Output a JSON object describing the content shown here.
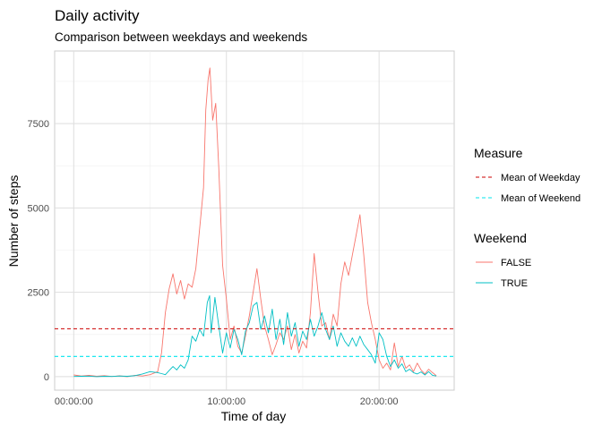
{
  "chart_data": {
    "type": "line",
    "title": "Daily activity",
    "subtitle": "Comparison between weekdays and weekends",
    "xlabel": "Time of day",
    "ylabel": "Number of steps",
    "x_unit": "hours",
    "xlim": [
      -1.25,
      24.92
    ],
    "ylim": [
      -400,
      9650
    ],
    "x_ticks": [
      {
        "value": 0,
        "label": "00:00:00"
      },
      {
        "value": 10,
        "label": "10:00:00"
      },
      {
        "value": 20,
        "label": "20:00:00"
      }
    ],
    "y_ticks": [
      {
        "value": 0,
        "label": "0"
      },
      {
        "value": 2500,
        "label": "2500"
      },
      {
        "value": 5000,
        "label": "5000"
      },
      {
        "value": 7500,
        "label": "7500"
      }
    ],
    "grid": true,
    "legend_placement": "right",
    "series": [
      {
        "name": "FALSE",
        "color": "#f8766d",
        "points": [
          [
            0,
            50
          ],
          [
            0.5,
            20
          ],
          [
            1,
            40
          ],
          [
            1.5,
            10
          ],
          [
            2,
            30
          ],
          [
            2.5,
            5
          ],
          [
            3,
            25
          ],
          [
            3.5,
            0
          ],
          [
            4,
            40
          ],
          [
            4.5,
            20
          ],
          [
            5,
            60
          ],
          [
            5.5,
            150
          ],
          [
            5.75,
            700
          ],
          [
            6,
            1900
          ],
          [
            6.25,
            2600
          ],
          [
            6.5,
            3050
          ],
          [
            6.75,
            2450
          ],
          [
            7,
            2850
          ],
          [
            7.25,
            2300
          ],
          [
            7.5,
            2750
          ],
          [
            7.75,
            2650
          ],
          [
            8,
            3200
          ],
          [
            8.25,
            4400
          ],
          [
            8.5,
            5600
          ],
          [
            8.65,
            7900
          ],
          [
            8.8,
            8800
          ],
          [
            8.92,
            9150
          ],
          [
            9.1,
            7600
          ],
          [
            9.3,
            8100
          ],
          [
            9.5,
            6200
          ],
          [
            9.75,
            3300
          ],
          [
            10,
            2300
          ],
          [
            10.25,
            1100
          ],
          [
            10.5,
            1500
          ],
          [
            10.75,
            900
          ],
          [
            11,
            700
          ],
          [
            11.25,
            1200
          ],
          [
            11.5,
            1800
          ],
          [
            11.75,
            2500
          ],
          [
            12,
            3200
          ],
          [
            12.25,
            2300
          ],
          [
            12.5,
            1500
          ],
          [
            12.75,
            1100
          ],
          [
            13,
            650
          ],
          [
            13.25,
            950
          ],
          [
            13.5,
            1300
          ],
          [
            13.75,
            1100
          ],
          [
            14,
            1500
          ],
          [
            14.25,
            800
          ],
          [
            14.5,
            1250
          ],
          [
            14.75,
            700
          ],
          [
            15,
            1050
          ],
          [
            15.25,
            850
          ],
          [
            15.5,
            1900
          ],
          [
            15.75,
            3650
          ],
          [
            16,
            2500
          ],
          [
            16.25,
            1500
          ],
          [
            16.5,
            1600
          ],
          [
            16.75,
            1100
          ],
          [
            17,
            1850
          ],
          [
            17.25,
            1500
          ],
          [
            17.5,
            2750
          ],
          [
            17.75,
            3400
          ],
          [
            18,
            3000
          ],
          [
            18.25,
            3600
          ],
          [
            18.5,
            4200
          ],
          [
            18.75,
            4800
          ],
          [
            19,
            3600
          ],
          [
            19.25,
            2200
          ],
          [
            19.5,
            1600
          ],
          [
            19.75,
            1100
          ],
          [
            20,
            500
          ],
          [
            20.25,
            250
          ],
          [
            20.5,
            400
          ],
          [
            20.75,
            200
          ],
          [
            21,
            1000
          ],
          [
            21.25,
            300
          ],
          [
            21.5,
            600
          ],
          [
            21.75,
            250
          ],
          [
            22,
            350
          ],
          [
            22.25,
            150
          ],
          [
            22.5,
            400
          ],
          [
            22.75,
            200
          ],
          [
            23,
            80
          ],
          [
            23.25,
            220
          ],
          [
            23.5,
            120
          ],
          [
            23.75,
            30
          ]
        ]
      },
      {
        "name": "TRUE",
        "color": "#00bfc4",
        "points": [
          [
            0,
            5
          ],
          [
            0.5,
            10
          ],
          [
            1,
            15
          ],
          [
            1.5,
            0
          ],
          [
            2,
            10
          ],
          [
            2.5,
            5
          ],
          [
            3,
            20
          ],
          [
            3.5,
            10
          ],
          [
            4,
            30
          ],
          [
            4.5,
            80
          ],
          [
            5,
            150
          ],
          [
            5.5,
            120
          ],
          [
            5.75,
            90
          ],
          [
            6,
            60
          ],
          [
            6.25,
            180
          ],
          [
            6.5,
            300
          ],
          [
            6.75,
            200
          ],
          [
            7,
            350
          ],
          [
            7.25,
            250
          ],
          [
            7.5,
            500
          ],
          [
            7.75,
            1200
          ],
          [
            8,
            1050
          ],
          [
            8.25,
            1400
          ],
          [
            8.5,
            1200
          ],
          [
            8.75,
            2200
          ],
          [
            8.9,
            2400
          ],
          [
            9,
            1300
          ],
          [
            9.25,
            2350
          ],
          [
            9.5,
            1500
          ],
          [
            9.75,
            700
          ],
          [
            10,
            1300
          ],
          [
            10.25,
            850
          ],
          [
            10.5,
            1400
          ],
          [
            10.75,
            1100
          ],
          [
            11,
            650
          ],
          [
            11.25,
            1350
          ],
          [
            11.5,
            1600
          ],
          [
            11.75,
            2100
          ],
          [
            12,
            2200
          ],
          [
            12.25,
            1400
          ],
          [
            12.5,
            1800
          ],
          [
            12.75,
            1300
          ],
          [
            13,
            2000
          ],
          [
            13.25,
            1100
          ],
          [
            13.5,
            1700
          ],
          [
            13.75,
            950
          ],
          [
            14,
            1900
          ],
          [
            14.25,
            1200
          ],
          [
            14.5,
            1600
          ],
          [
            14.75,
            900
          ],
          [
            15,
            1350
          ],
          [
            15.25,
            1100
          ],
          [
            15.5,
            1700
          ],
          [
            15.75,
            1200
          ],
          [
            16,
            1500
          ],
          [
            16.25,
            1900
          ],
          [
            16.5,
            1400
          ],
          [
            16.75,
            1100
          ],
          [
            17,
            1500
          ],
          [
            17.25,
            900
          ],
          [
            17.5,
            1300
          ],
          [
            17.75,
            1050
          ],
          [
            18,
            900
          ],
          [
            18.25,
            1150
          ],
          [
            18.5,
            900
          ],
          [
            18.75,
            1200
          ],
          [
            19,
            950
          ],
          [
            19.25,
            800
          ],
          [
            19.5,
            650
          ],
          [
            19.75,
            400
          ],
          [
            20,
            1300
          ],
          [
            20.25,
            1100
          ],
          [
            20.5,
            600
          ],
          [
            20.75,
            300
          ],
          [
            21,
            500
          ],
          [
            21.25,
            250
          ],
          [
            21.5,
            380
          ],
          [
            21.75,
            150
          ],
          [
            22,
            220
          ],
          [
            22.25,
            120
          ],
          [
            22.5,
            80
          ],
          [
            22.75,
            140
          ],
          [
            23,
            50
          ],
          [
            23.25,
            150
          ],
          [
            23.5,
            40
          ],
          [
            23.75,
            20
          ]
        ]
      }
    ],
    "reference_lines": [
      {
        "name": "Mean of Weekday",
        "value": 1420,
        "color": "#cc0000",
        "dash": "dashed"
      },
      {
        "name": "Mean of Weekend",
        "value": 600,
        "color": "#00e5ee",
        "dash": "dashed"
      }
    ],
    "legends": [
      {
        "title": "Measure",
        "items": [
          {
            "label": "Mean of Weekday",
            "color": "#cc0000",
            "dash": true
          },
          {
            "label": "Mean of Weekend",
            "color": "#00e5ee",
            "dash": true
          }
        ]
      },
      {
        "title": "Weekend",
        "items": [
          {
            "label": "FALSE",
            "color": "#f8766d",
            "dash": false
          },
          {
            "label": "TRUE",
            "color": "#00bfc4",
            "dash": false
          }
        ]
      }
    ]
  }
}
